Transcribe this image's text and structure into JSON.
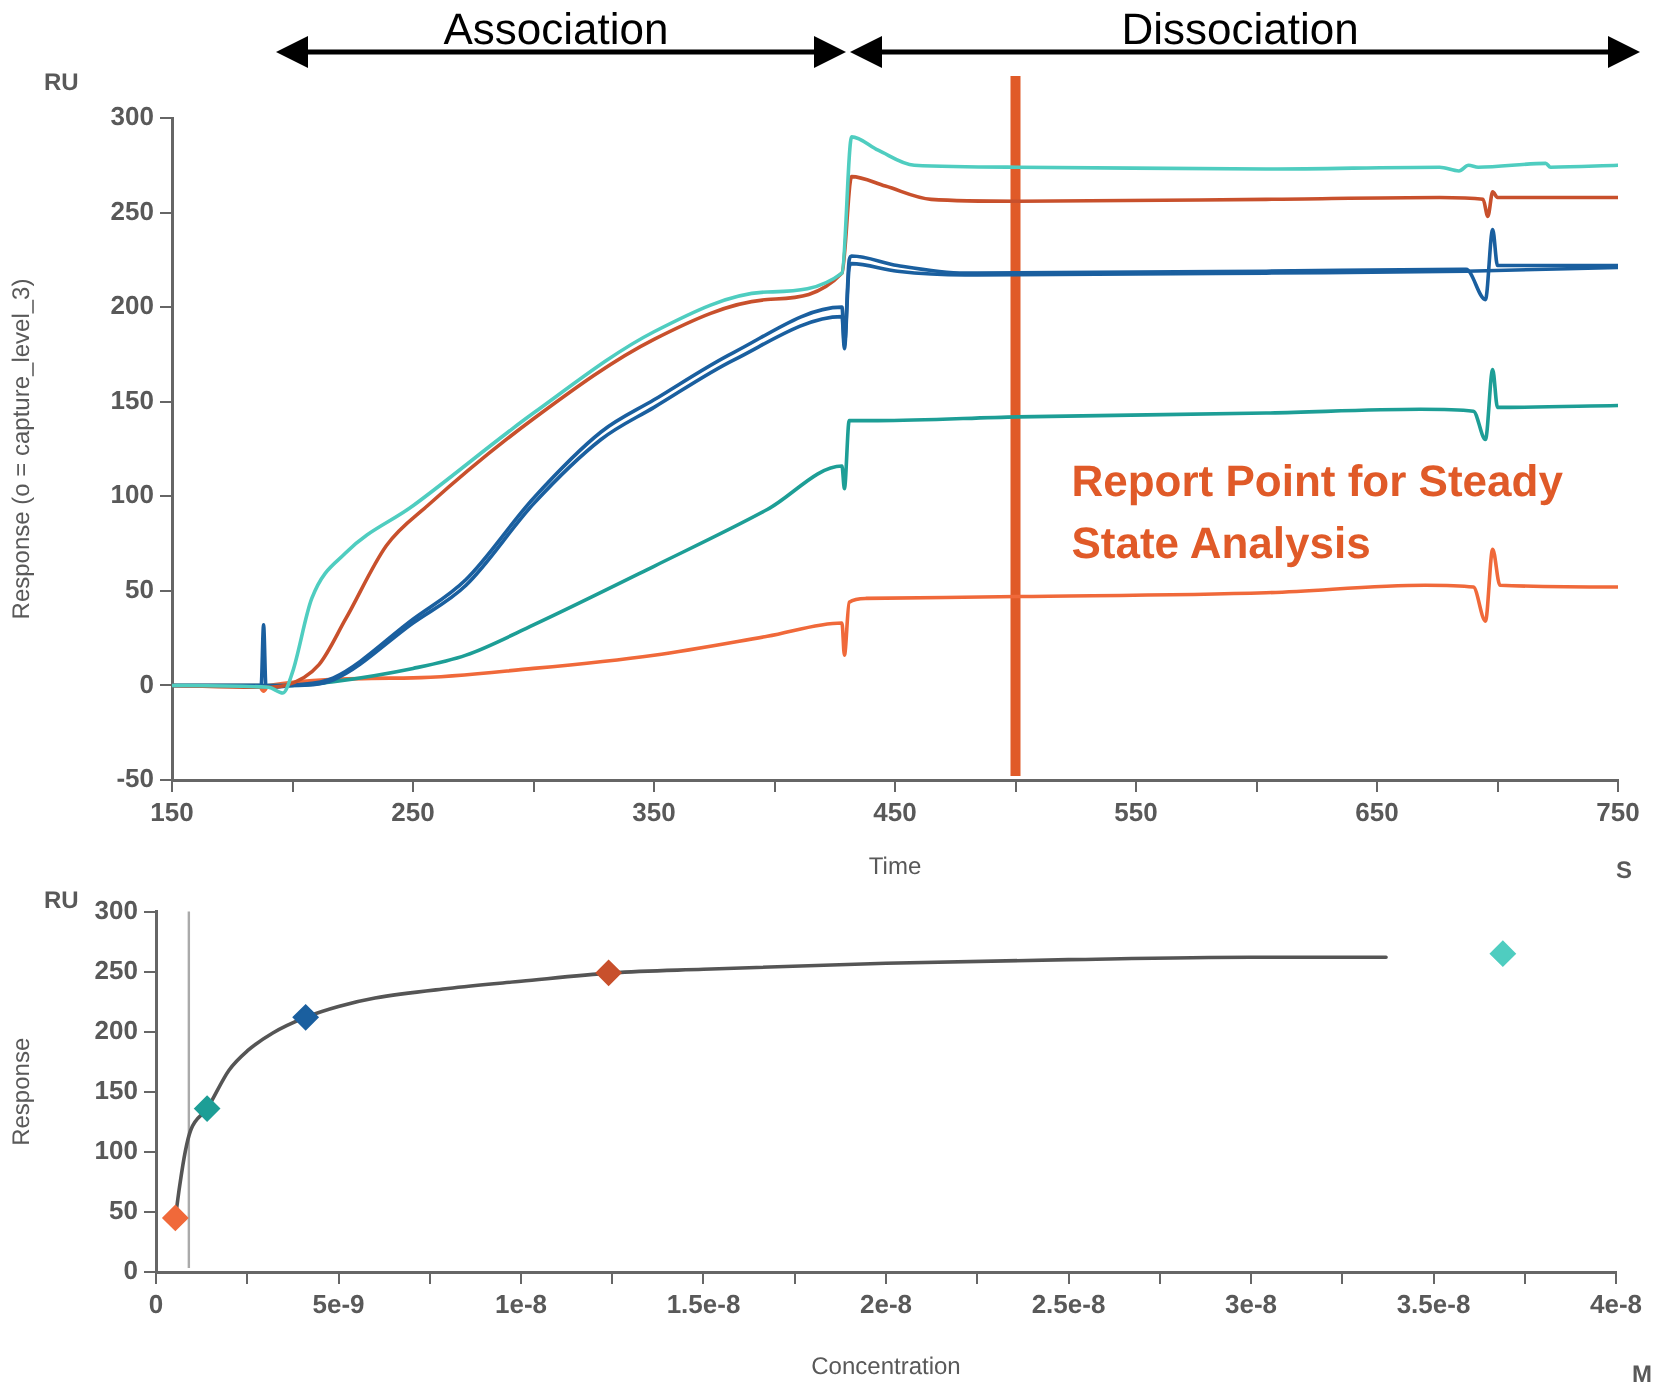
{
  "chart_data": [
    {
      "type": "line",
      "xlabel": "Time",
      "ylabel": "Response (o = capture_level_3)",
      "annotations": [
        "Association",
        "Dissociation",
        "RU",
        "S"
      ],
      "xlim": [
        150,
        750
      ],
      "xticks": [
        150,
        {
          "value": 200,
          "label": null
        },
        250,
        {
          "value": 300,
          "label": null
        },
        350,
        {
          "value": 400,
          "label": null
        },
        450,
        {
          "value": 500,
          "label": null
        },
        550,
        {
          "value": 600,
          "label": null
        },
        650,
        {
          "value": 700,
          "label": null
        },
        750
      ],
      "ylim": [
        -50,
        300
      ],
      "yticks": [
        -50,
        0,
        50,
        100,
        150,
        200,
        250,
        300
      ],
      "grid": false,
      "legend": false,
      "marker": "none",
      "line_style": "solid",
      "ref_lines": [
        {
          "axis": "x",
          "value": 500,
          "label": "Report Point for Steady State Analysis",
          "color": "#e05a28"
        }
      ],
      "series": [
        {
          "color": "#4fcdc0",
          "x": [
            150,
            190,
            196,
            200,
            208,
            222,
            250,
            300,
            350,
            397,
            428,
            432,
            443,
            458,
            501,
            604,
            676,
            684,
            688,
            692,
            720,
            722,
            750
          ],
          "values": [
            0,
            -1,
            -4,
            7,
            46,
            70,
            95,
            144,
            187,
            208,
            218,
            290,
            283,
            275,
            274,
            273,
            274,
            272,
            275,
            274,
            276,
            274,
            275
          ]
        },
        {
          "color": "#c8502c",
          "x": [
            150,
            188,
            197,
            211,
            222,
            239,
            256,
            300,
            350,
            397,
            428,
            432,
            446,
            465,
            501,
            604,
            676,
            694,
            696,
            698,
            700,
            750
          ],
          "values": [
            0,
            -1,
            0,
            11,
            35,
            74,
            95,
            141,
            183,
            204,
            218,
            269,
            264,
            257,
            256,
            257,
            258,
            257,
            248,
            261,
            258,
            258
          ]
        },
        {
          "color": "#1a5f9f",
          "x": [
            150,
            187,
            188,
            189,
            200,
            217,
            250,
            272,
            300,
            328,
            350,
            383,
            428,
            429,
            431,
            432,
            451,
            479,
            604,
            687,
            695,
            698,
            700,
            750
          ],
          "values": [
            0,
            0,
            32,
            -1,
            0,
            4,
            35,
            56,
            99,
            134,
            151,
            176,
            200,
            180,
            225,
            227,
            222,
            218,
            219,
            220,
            204,
            241,
            222,
            222
          ]
        },
        {
          "color": "#1a5f9f",
          "x": [
            150,
            200,
            217,
            250,
            272,
            300,
            328,
            350,
            383,
            428,
            429,
            431,
            432,
            451,
            479,
            604,
            687,
            750
          ],
          "values": [
            0,
            0,
            3,
            33,
            53,
            96,
            130,
            147,
            172,
            195,
            178,
            221,
            223,
            219,
            217,
            218,
            219,
            221
          ]
        },
        {
          "color": "#1d9e96",
          "x": [
            150,
            200,
            217,
            250,
            272,
            300,
            350,
            397,
            428,
            429,
            431,
            443,
            501,
            604,
            668,
            690,
            695,
            698,
            700,
            750
          ],
          "values": [
            0,
            0,
            2,
            9,
            16,
            32,
            63,
            93,
            116,
            104,
            140,
            140,
            142,
            144,
            146,
            145,
            130,
            167,
            147,
            148
          ]
        },
        {
          "color": "#f0693a",
          "x": [
            150,
            186,
            188,
            190,
            250,
            300,
            350,
            397,
            428,
            429,
            431,
            438,
            501,
            604,
            670,
            690,
            695,
            698,
            701,
            750
          ],
          "values": [
            0,
            0,
            -3,
            0,
            4,
            9,
            16,
            26,
            33,
            16,
            44,
            46,
            47,
            49,
            53,
            52,
            34,
            72,
            53,
            52
          ]
        }
      ]
    },
    {
      "type": "scatter",
      "xlabel": "Concentration",
      "ylabel": "Response",
      "annotations": [
        "RU",
        "M"
      ],
      "xlim": [
        0,
        4e-08
      ],
      "xticks": [
        0,
        {
          "value": 2.5e-09,
          "label": null
        },
        {
          "value": 5e-09,
          "label": "5e-9"
        },
        {
          "value": 7.5e-09,
          "label": null
        },
        {
          "value": 1e-08,
          "label": "1e-8"
        },
        {
          "value": 1.25e-08,
          "label": null
        },
        {
          "value": 1.5e-08,
          "label": "1.5e-8"
        },
        {
          "value": 1.75e-08,
          "label": null
        },
        {
          "value": 2e-08,
          "label": "2e-8"
        },
        {
          "value": 2.25e-08,
          "label": null
        },
        {
          "value": 2.5e-08,
          "label": "2.5e-8"
        },
        {
          "value": 2.75e-08,
          "label": null
        },
        {
          "value": 3e-08,
          "label": "3e-8"
        },
        {
          "value": 3.25e-08,
          "label": null
        },
        {
          "value": 3.5e-08,
          "label": "3.5e-8"
        },
        {
          "value": 3.75e-08,
          "label": null
        },
        {
          "value": 4e-08,
          "label": "4e-8"
        }
      ],
      "ylim": [
        0,
        300
      ],
      "yticks": [
        0,
        50,
        100,
        150,
        200,
        250,
        300
      ],
      "grid": false,
      "legend": false,
      "marker": "diamond",
      "ref_lines": [
        {
          "axis": "x",
          "value": 9e-10,
          "color": "#aaaaaa"
        }
      ],
      "series": [
        {
          "type": "line",
          "marker": "none",
          "color": "#555555",
          "x": [
            5.3e-10,
            6.5e-10,
            8e-10,
            9.5e-10,
            1.4e-09,
            2e-09,
            2.5e-09,
            3.2e-09,
            4.1e-09,
            5e-09,
            6e-09,
            8e-09,
            1e-08,
            1.25e-08,
            1.5e-08,
            2e-08,
            2.5e-08,
            3e-08,
            3.37e-08
          ],
          "values": [
            45,
            72,
            100,
            118,
            136,
            168,
            184,
            199,
            212,
            221,
            228,
            236,
            242,
            249,
            252,
            257,
            260,
            262,
            262
          ]
        },
        {
          "x": [
            5.3e-10,
            1.4e-09,
            4.1e-09,
            1.24e-08,
            3.69e-08
          ],
          "values": [
            45,
            136,
            212,
            249,
            265
          ],
          "colors": [
            "#f0693a",
            "#1d9e96",
            "#1a5f9f",
            "#c8502c",
            "#4fcdc0"
          ]
        }
      ]
    }
  ]
}
